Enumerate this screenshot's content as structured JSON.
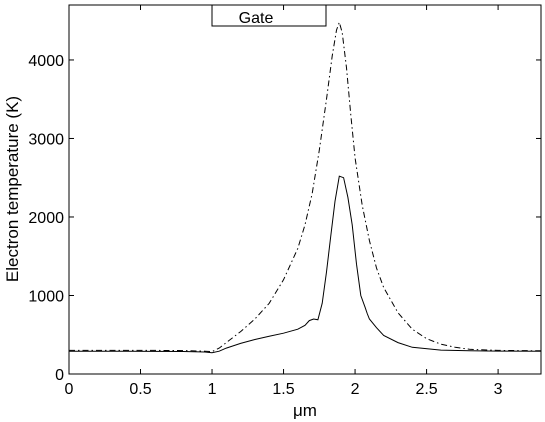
{
  "chart_data": {
    "type": "line",
    "title": "",
    "xlabel": "μm",
    "ylabel": "Electron temperature (K)",
    "xlim": [
      0,
      3.3
    ],
    "ylim": [
      0,
      4700
    ],
    "xticks": [
      "0",
      "0.5",
      "1",
      "1.5",
      "2",
      "2.5",
      "3"
    ],
    "xtick_values": [
      0,
      0.5,
      1,
      1.5,
      2,
      2.5,
      3
    ],
    "yticks": [
      "0",
      "1000",
      "2000",
      "3000",
      "4000"
    ],
    "ytick_values": [
      0,
      1000,
      2000,
      3000,
      4000
    ],
    "grid": false,
    "annotation": {
      "label": "Gate",
      "x_start": 1.0,
      "x_end": 1.77
    },
    "series": [
      {
        "style": "solid",
        "color": "#000000",
        "x": [
          0,
          0.3,
          0.6,
          0.8,
          0.95,
          1.0,
          1.05,
          1.1,
          1.2,
          1.3,
          1.4,
          1.5,
          1.6,
          1.65,
          1.68,
          1.71,
          1.74,
          1.77,
          1.8,
          1.83,
          1.86,
          1.89,
          1.92,
          1.95,
          1.98,
          2.01,
          2.04,
          2.07,
          2.085,
          2.1,
          2.15,
          2.2,
          2.3,
          2.4,
          2.6,
          2.8,
          3.0,
          3.3
        ],
        "y": [
          290,
          290,
          288,
          287,
          280,
          270,
          290,
          330,
          390,
          440,
          480,
          520,
          570,
          620,
          680,
          700,
          690,
          900,
          1300,
          1750,
          2200,
          2520,
          2500,
          2250,
          1900,
          1400,
          1000,
          850,
          770,
          700,
          590,
          490,
          400,
          340,
          305,
          295,
          292,
          290
        ]
      },
      {
        "style": "dashdot",
        "color": "#000000",
        "x": [
          0,
          0.3,
          0.6,
          0.8,
          0.95,
          1.0,
          1.05,
          1.1,
          1.2,
          1.3,
          1.4,
          1.5,
          1.6,
          1.65,
          1.7,
          1.75,
          1.8,
          1.84,
          1.87,
          1.89,
          1.91,
          1.94,
          1.97,
          2.0,
          2.05,
          2.1,
          2.15,
          2.2,
          2.3,
          2.4,
          2.5,
          2.6,
          2.7,
          2.8,
          3.0,
          3.3
        ],
        "y": [
          300,
          300,
          300,
          298,
          290,
          285,
          330,
          400,
          540,
          700,
          900,
          1200,
          1600,
          1900,
          2300,
          2850,
          3500,
          4050,
          4380,
          4480,
          4350,
          3900,
          3300,
          2750,
          2150,
          1700,
          1350,
          1100,
          780,
          570,
          450,
          380,
          340,
          315,
          300,
          295
        ]
      }
    ]
  }
}
